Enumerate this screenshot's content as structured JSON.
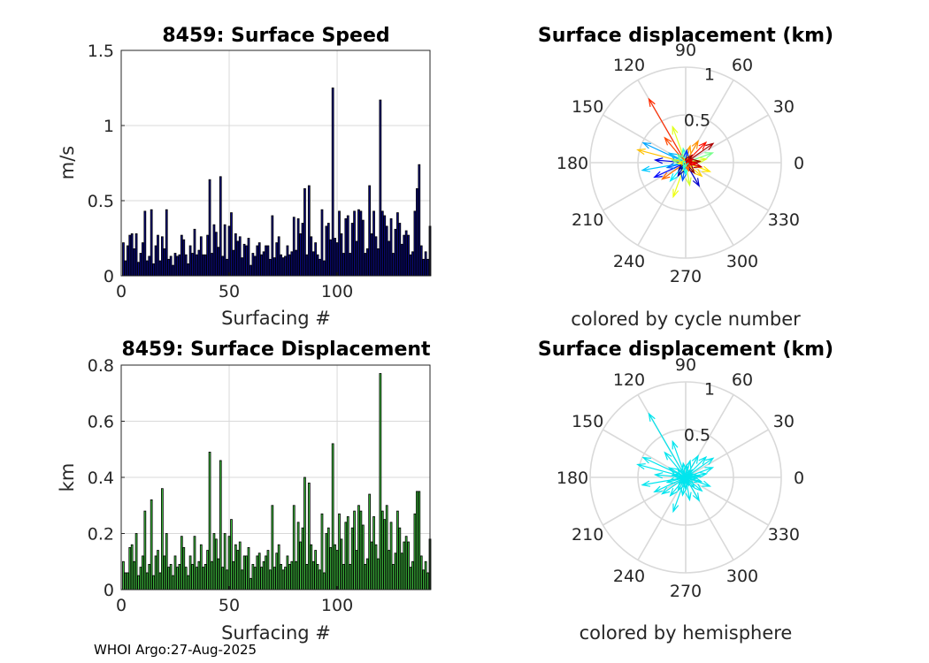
{
  "footer": "WHOI Argo:27-Aug-2025",
  "colors": {
    "speed_bar": "#0a0a80",
    "disp_bar": "#3fbf3f",
    "hemisphere_arrow": "#00e5ee",
    "grid": "#d9d9d9",
    "axis": "#262626"
  },
  "chart_data": [
    {
      "id": "speed",
      "type": "bar",
      "title": "8459: Surface Speed",
      "xlabel": "Surfacing #",
      "ylabel": "m/s",
      "xlim": [
        0,
        143
      ],
      "ylim": [
        0,
        1.5
      ],
      "xticks": [
        0,
        50,
        100
      ],
      "yticks": [
        0,
        0.5,
        1,
        1.5
      ],
      "xtick_labels": [
        "0",
        "50",
        "100"
      ],
      "ytick_labels": [
        "0",
        "0.5",
        "1",
        "1.5"
      ],
      "grid": true,
      "x_start": 1,
      "values": [
        0.22,
        0.1,
        0.2,
        0.27,
        0.28,
        0.18,
        0.28,
        0.09,
        0.15,
        0.22,
        0.43,
        0.1,
        0.13,
        0.44,
        0.08,
        0.2,
        0.27,
        0.1,
        0.26,
        0.18,
        0.44,
        0.11,
        0.13,
        0.07,
        0.15,
        0.13,
        0.14,
        0.27,
        0.24,
        0.14,
        0.08,
        0.2,
        0.15,
        0.31,
        0.14,
        0.17,
        0.26,
        0.14,
        0.14,
        0.27,
        0.64,
        0.15,
        0.34,
        0.29,
        0.19,
        0.66,
        0.13,
        0.34,
        0.11,
        0.33,
        0.42,
        0.17,
        0.28,
        0.23,
        0.26,
        0.12,
        0.21,
        0.2,
        0.25,
        0.07,
        0.15,
        0.13,
        0.2,
        0.22,
        0.14,
        0.16,
        0.2,
        0.2,
        0.11,
        0.4,
        0.12,
        0.22,
        0.26,
        0.14,
        0.12,
        0.13,
        0.2,
        0.14,
        0.16,
        0.39,
        0.17,
        0.38,
        0.28,
        0.35,
        0.58,
        0.14,
        0.6,
        0.26,
        0.16,
        0.22,
        0.14,
        0.11,
        0.44,
        0.1,
        0.33,
        0.35,
        0.24,
        1.25,
        0.25,
        0.22,
        0.43,
        0.28,
        0.15,
        0.38,
        0.4,
        0.15,
        0.35,
        0.43,
        0.23,
        0.44,
        0.43,
        0.37,
        0.15,
        0.18,
        0.6,
        0.28,
        0.43,
        0.26,
        0.18,
        1.17,
        0.43,
        0.4,
        0.33,
        0.23,
        0.38,
        0.15,
        0.31,
        0.42,
        0.35,
        0.21,
        0.27,
        0.3,
        0.27,
        0.14,
        0.16,
        0.43,
        0.58,
        0.74,
        0.2,
        0.11,
        0.16,
        0.11,
        0.33
      ]
    },
    {
      "id": "displacement",
      "type": "bar",
      "title": "8459: Surface Displacement",
      "xlabel": "Surfacing #",
      "ylabel": "km",
      "xlim": [
        0,
        143
      ],
      "ylim": [
        0,
        0.8
      ],
      "xticks": [
        0,
        50,
        100
      ],
      "yticks": [
        0,
        0.2,
        0.4,
        0.6,
        0.8
      ],
      "xtick_labels": [
        "0",
        "50",
        "100"
      ],
      "ytick_labels": [
        "0",
        "0.2",
        "0.4",
        "0.6",
        "0.8"
      ],
      "grid": true,
      "x_start": 1,
      "values": [
        0.1,
        0.06,
        0.06,
        0.15,
        0.16,
        0.1,
        0.2,
        0.05,
        0.08,
        0.12,
        0.28,
        0.06,
        0.09,
        0.32,
        0.05,
        0.12,
        0.14,
        0.06,
        0.36,
        0.12,
        0.2,
        0.08,
        0.09,
        0.05,
        0.12,
        0.08,
        0.09,
        0.19,
        0.15,
        0.08,
        0.05,
        0.12,
        0.09,
        0.19,
        0.08,
        0.1,
        0.16,
        0.08,
        0.09,
        0.14,
        0.49,
        0.1,
        0.2,
        0.18,
        0.11,
        0.46,
        0.08,
        0.2,
        0.07,
        0.19,
        0.25,
        0.1,
        0.16,
        0.14,
        0.17,
        0.07,
        0.12,
        0.12,
        0.15,
        0.04,
        0.09,
        0.08,
        0.12,
        0.13,
        0.08,
        0.1,
        0.12,
        0.14,
        0.07,
        0.3,
        0.08,
        0.13,
        0.16,
        0.09,
        0.07,
        0.08,
        0.12,
        0.09,
        0.1,
        0.3,
        0.1,
        0.24,
        0.17,
        0.22,
        0.4,
        0.09,
        0.38,
        0.16,
        0.1,
        0.14,
        0.09,
        0.07,
        0.27,
        0.06,
        0.2,
        0.22,
        0.15,
        0.52,
        0.16,
        0.14,
        0.27,
        0.18,
        0.09,
        0.24,
        0.26,
        0.09,
        0.22,
        0.28,
        0.14,
        0.3,
        0.28,
        0.23,
        0.09,
        0.11,
        0.34,
        0.17,
        0.26,
        0.16,
        0.11,
        0.77,
        0.28,
        0.25,
        0.3,
        0.14,
        0.24,
        0.09,
        0.13,
        0.28,
        0.22,
        0.13,
        0.17,
        0.19,
        0.17,
        0.08,
        0.1,
        0.27,
        0.35,
        0.35,
        0.12,
        0.07,
        0.1,
        0.06,
        0.18
      ]
    },
    {
      "id": "polar_cycle",
      "type": "polar-arrows",
      "title": "Surface displacement (km)",
      "caption": "colored by cycle number",
      "rmax": 1,
      "r_ticks": [
        0.5,
        1
      ],
      "r_tick_labels": [
        "0.5",
        "1"
      ],
      "theta_ticks_deg": [
        0,
        30,
        60,
        90,
        120,
        150,
        180,
        210,
        240,
        270,
        300,
        330
      ],
      "theta_tick_labels": [
        "0",
        "30",
        "60",
        "90",
        "120",
        "150",
        "180",
        "210",
        "240",
        "270",
        "300",
        "330"
      ],
      "colormap": "jet",
      "vectors": [
        {
          "angle": 120,
          "r": 0.77,
          "cycle": 119
        },
        {
          "angle": 165,
          "r": 0.52,
          "cycle": 98
        },
        {
          "angle": 155,
          "r": 0.49,
          "cycle": 41
        },
        {
          "angle": 190,
          "r": 0.46,
          "cycle": 46
        },
        {
          "angle": 110,
          "r": 0.4,
          "cycle": 85
        },
        {
          "angle": 250,
          "r": 0.38,
          "cycle": 87
        },
        {
          "angle": 205,
          "r": 0.36,
          "cycle": 19
        },
        {
          "angle": 35,
          "r": 0.35,
          "cycle": 137
        },
        {
          "angle": 130,
          "r": 0.34,
          "cycle": 115
        },
        {
          "angle": 175,
          "r": 0.32,
          "cycle": 14
        },
        {
          "angle": 20,
          "r": 0.3,
          "cycle": 70
        },
        {
          "angle": 45,
          "r": 0.3,
          "cycle": 123
        },
        {
          "angle": 215,
          "r": 0.3,
          "cycle": 110
        },
        {
          "angle": 300,
          "r": 0.28,
          "cycle": 11
        },
        {
          "angle": 340,
          "r": 0.27,
          "cycle": 93
        },
        {
          "angle": 60,
          "r": 0.26,
          "cycle": 105
        },
        {
          "angle": 230,
          "r": 0.25,
          "cycle": 51
        },
        {
          "angle": 280,
          "r": 0.24,
          "cycle": 83
        },
        {
          "angle": 10,
          "r": 0.22,
          "cycle": 84
        },
        {
          "angle": 320,
          "r": 0.22,
          "cycle": 96
        },
        {
          "angle": 150,
          "r": 0.2,
          "cycle": 44
        },
        {
          "angle": 195,
          "r": 0.2,
          "cycle": 33
        },
        {
          "angle": 260,
          "r": 0.19,
          "cycle": 30
        },
        {
          "angle": 75,
          "r": 0.18,
          "cycle": 102
        },
        {
          "angle": 345,
          "r": 0.17,
          "cycle": 133
        },
        {
          "angle": 240,
          "r": 0.16,
          "cycle": 5
        },
        {
          "angle": 100,
          "r": 0.15,
          "cycle": 62
        },
        {
          "angle": 5,
          "r": 0.15,
          "cycle": 139
        },
        {
          "angle": 310,
          "r": 0.14,
          "cycle": 142
        },
        {
          "angle": 170,
          "r": 0.14,
          "cycle": 74
        },
        {
          "angle": 85,
          "r": 0.13,
          "cycle": 25
        },
        {
          "angle": 270,
          "r": 0.12,
          "cycle": 56
        },
        {
          "angle": 135,
          "r": 0.12,
          "cycle": 66
        },
        {
          "angle": 355,
          "r": 0.11,
          "cycle": 127
        },
        {
          "angle": 225,
          "r": 0.1,
          "cycle": 2
        },
        {
          "angle": 50,
          "r": 0.1,
          "cycle": 140
        },
        {
          "angle": 290,
          "r": 0.09,
          "cycle": 112
        },
        {
          "angle": 185,
          "r": 0.08,
          "cycle": 91
        },
        {
          "angle": 25,
          "r": 0.08,
          "cycle": 130
        },
        {
          "angle": 250,
          "r": 0.07,
          "cycle": 60
        }
      ]
    },
    {
      "id": "polar_hemisphere",
      "type": "polar-arrows",
      "title": "Surface displacement (km)",
      "caption": "colored by hemisphere",
      "rmax": 1,
      "r_ticks": [
        0.5,
        1
      ],
      "r_tick_labels": [
        "0.5",
        "1"
      ],
      "theta_ticks_deg": [
        0,
        30,
        60,
        90,
        120,
        150,
        180,
        210,
        240,
        270,
        300,
        330
      ],
      "theta_tick_labels": [
        "0",
        "30",
        "60",
        "90",
        "120",
        "150",
        "180",
        "210",
        "240",
        "270",
        "300",
        "330"
      ],
      "color": "#00e5ee",
      "vectors": [
        {
          "angle": 120,
          "r": 0.77
        },
        {
          "angle": 165,
          "r": 0.52
        },
        {
          "angle": 155,
          "r": 0.49
        },
        {
          "angle": 190,
          "r": 0.46
        },
        {
          "angle": 110,
          "r": 0.4
        },
        {
          "angle": 250,
          "r": 0.38
        },
        {
          "angle": 205,
          "r": 0.36
        },
        {
          "angle": 35,
          "r": 0.35
        },
        {
          "angle": 130,
          "r": 0.34
        },
        {
          "angle": 175,
          "r": 0.32
        },
        {
          "angle": 20,
          "r": 0.3
        },
        {
          "angle": 45,
          "r": 0.3
        },
        {
          "angle": 215,
          "r": 0.3
        },
        {
          "angle": 300,
          "r": 0.28
        },
        {
          "angle": 340,
          "r": 0.27
        },
        {
          "angle": 60,
          "r": 0.26
        },
        {
          "angle": 230,
          "r": 0.25
        },
        {
          "angle": 280,
          "r": 0.24
        },
        {
          "angle": 10,
          "r": 0.22
        },
        {
          "angle": 320,
          "r": 0.22
        },
        {
          "angle": 150,
          "r": 0.2
        },
        {
          "angle": 195,
          "r": 0.2
        },
        {
          "angle": 260,
          "r": 0.19
        },
        {
          "angle": 75,
          "r": 0.18
        },
        {
          "angle": 345,
          "r": 0.17
        },
        {
          "angle": 240,
          "r": 0.16
        },
        {
          "angle": 100,
          "r": 0.15
        },
        {
          "angle": 5,
          "r": 0.15
        },
        {
          "angle": 310,
          "r": 0.14
        },
        {
          "angle": 170,
          "r": 0.14
        },
        {
          "angle": 85,
          "r": 0.13
        },
        {
          "angle": 270,
          "r": 0.12
        },
        {
          "angle": 135,
          "r": 0.12
        },
        {
          "angle": 355,
          "r": 0.11
        },
        {
          "angle": 225,
          "r": 0.1
        },
        {
          "angle": 50,
          "r": 0.1
        },
        {
          "angle": 290,
          "r": 0.09
        },
        {
          "angle": 185,
          "r": 0.08
        },
        {
          "angle": 25,
          "r": 0.08
        },
        {
          "angle": 250,
          "r": 0.07
        }
      ]
    }
  ]
}
